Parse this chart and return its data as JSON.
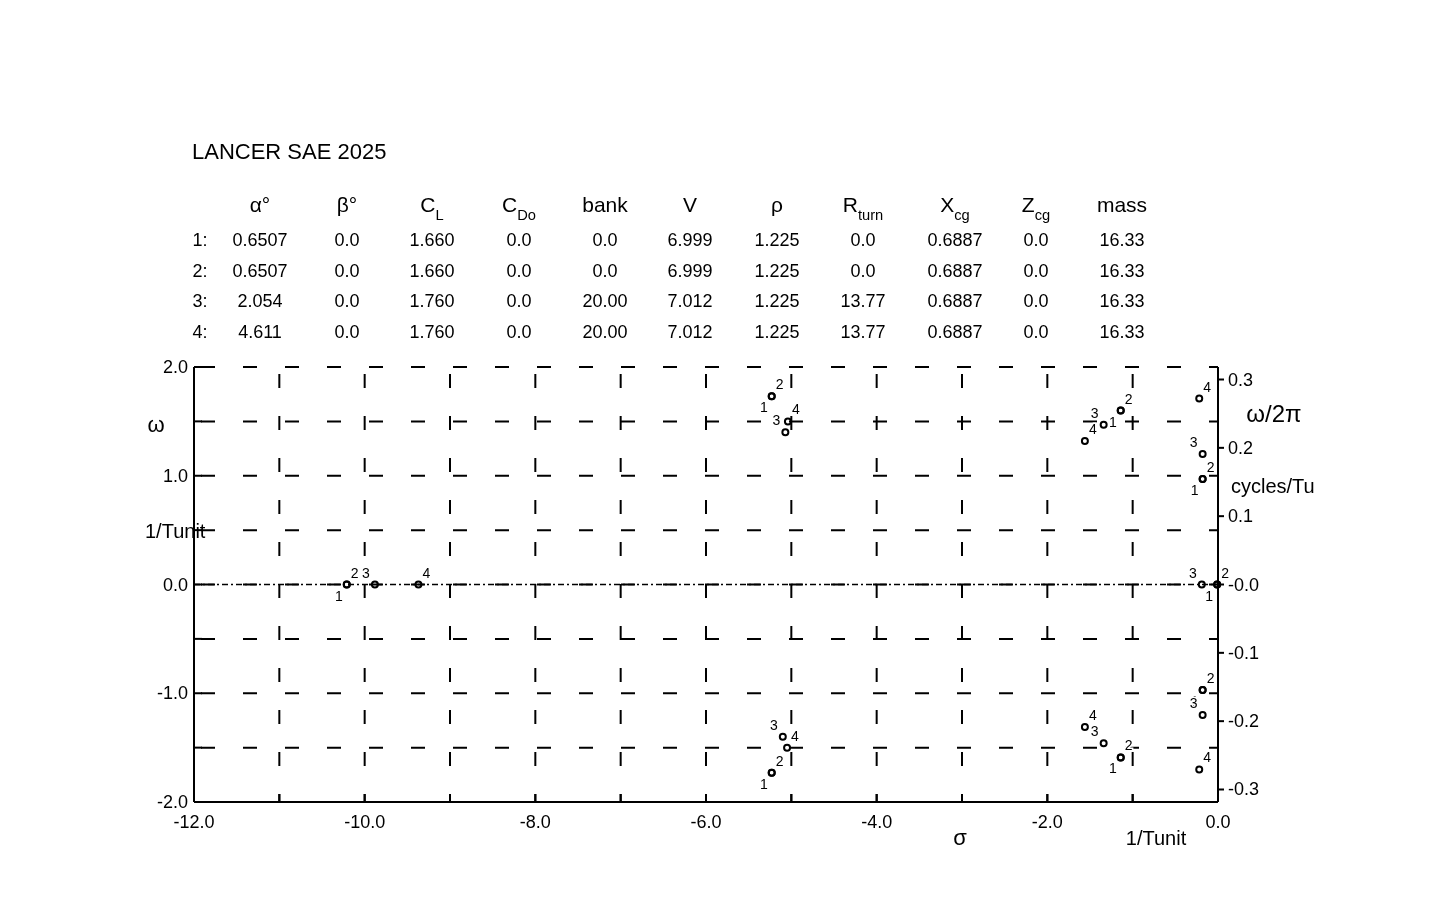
{
  "chart_data": {
    "type": "scatter",
    "title": "LANCER SAE 2025",
    "xlabel": "σ",
    "ylabel": "ω",
    "y2label": "ω/2π",
    "annotations": [
      "α°",
      "β°",
      "C$_{L}$",
      "C$_{Do}$",
      "bank",
      "V",
      "ρ",
      "R$_{turn}$",
      "X$_{cg}$",
      "Z$_{cg}$",
      "mass",
      "1:",
      "0.6507",
      "0.0",
      "1.660",
      "0.0",
      "0.0",
      "6.999",
      "1.225",
      "0.0",
      "0.6887",
      "0.0",
      "16.33",
      "2:",
      "0.6507",
      "0.0",
      "1.660",
      "0.0",
      "0.0",
      "6.999",
      "1.225",
      "0.0",
      "0.6887",
      "0.0",
      "16.33",
      "3:",
      "2.054",
      "0.0",
      "1.760",
      "0.0",
      "20.00",
      "7.012",
      "1.225",
      "13.77",
      "0.6887",
      "0.0",
      "16.33",
      "4:",
      "4.611",
      "0.0",
      "1.760",
      "0.0",
      "20.00",
      "7.012",
      "1.225",
      "13.77",
      "0.6887",
      "0.0",
      "16.33",
      "1/Tunit",
      "1/Tunit",
      "cycles/Tu"
    ],
    "series": [
      {
        "name": "1",
        "color": "#000000",
        "x": [
          -10.21,
          -5.23,
          -5.23,
          -1.14,
          -1.14,
          -0.18,
          -0.18,
          -0.01
        ],
        "values": [
          0,
          1.73,
          -1.73,
          1.6,
          -1.59,
          0.97,
          -0.97,
          0
        ]
      },
      {
        "name": "2",
        "color": "#000000",
        "x": [
          -10.21,
          -5.23,
          -5.23,
          -1.14,
          -1.14,
          -0.18,
          -0.18,
          -0.01
        ],
        "values": [
          0,
          1.73,
          -1.73,
          1.6,
          -1.59,
          0.97,
          -0.97,
          0
        ]
      },
      {
        "name": "3",
        "color": "#000000",
        "x": [
          -9.88,
          -5.07,
          -5.1,
          -1.34,
          -1.34,
          -0.18,
          -0.18,
          -0.19
        ],
        "values": [
          0,
          1.4,
          -1.4,
          1.47,
          -1.46,
          1.2,
          -1.2,
          0
        ]
      },
      {
        "name": "4",
        "color": "#000000",
        "x": [
          -9.37,
          -5.04,
          -5.05,
          -1.56,
          -1.56,
          -0.22,
          -0.22
        ],
        "values": [
          0,
          1.5,
          -1.5,
          1.32,
          -1.31,
          1.71,
          -1.7
        ]
      }
    ],
    "xlim": [
      -12,
      0
    ],
    "ylim": [
      -2,
      2
    ],
    "y2lim": [
      -0.3183,
      0.3183
    ],
    "xticks": [
      {
        "value": -12,
        "label": "-12.0"
      },
      {
        "value": -11,
        "label": null
      },
      {
        "value": -10,
        "label": "-10.0"
      },
      {
        "value": -9,
        "label": null
      },
      {
        "value": -8,
        "label": "-8.0"
      },
      {
        "value": -7,
        "label": null
      },
      {
        "value": -6,
        "label": "-6.0"
      },
      {
        "value": -5,
        "label": null
      },
      {
        "value": -4,
        "label": "-4.0"
      },
      {
        "value": -3,
        "label": null
      },
      {
        "value": -2,
        "label": "-2.0"
      },
      {
        "value": -1,
        "label": null
      },
      {
        "value": 0,
        "label": "0.0"
      }
    ],
    "yticks": [
      {
        "value": -2,
        "label": "-2.0"
      },
      {
        "value": -1.5,
        "label": null
      },
      {
        "value": -1,
        "label": "-1.0"
      },
      {
        "value": -0.5,
        "label": null
      },
      {
        "value": 0,
        "label": "0.0"
      },
      {
        "value": 0.5,
        "label": null
      },
      {
        "value": 1,
        "label": "1.0"
      },
      {
        "value": 1.5,
        "label": null
      },
      {
        "value": 2,
        "label": "2.0"
      }
    ],
    "y2ticks": [
      {
        "value": -0.3,
        "label": "-0.3"
      },
      {
        "value": -0.2,
        "label": "-0.2"
      },
      {
        "value": -0.1,
        "label": "-0.1"
      },
      {
        "value": 0,
        "label": "-0.0"
      },
      {
        "value": 0.1,
        "label": "0.1"
      },
      {
        "value": 0.2,
        "label": "0.2"
      },
      {
        "value": 0.3,
        "label": "0.3"
      }
    ],
    "ref_lines": [
      {
        "axis": "y",
        "value": 0
      }
    ],
    "grid": true,
    "marker": "circle",
    "legend": false
  }
}
